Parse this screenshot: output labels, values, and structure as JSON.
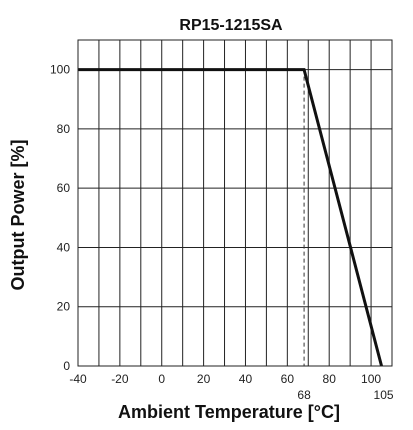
{
  "chart_data": {
    "type": "line",
    "title": "RP15-1215SA",
    "xlabel": "Ambient Temperature [°C]",
    "ylabel": "Output Power [%]",
    "xlim": [
      -40,
      110
    ],
    "ylim": [
      0,
      110
    ],
    "x_ticks": [
      -40,
      -20,
      0,
      20,
      40,
      60,
      80,
      100
    ],
    "y_ticks": [
      0,
      20,
      40,
      60,
      80,
      100
    ],
    "grid": true,
    "series": [
      {
        "x": [
          -40,
          68,
          105
        ],
        "y": [
          100,
          100,
          0
        ],
        "color": "#111111"
      }
    ],
    "annotations": [
      {
        "x": 68,
        "label": "68",
        "style": "dashed-vertical"
      },
      {
        "x": 105,
        "label": "105"
      }
    ]
  }
}
